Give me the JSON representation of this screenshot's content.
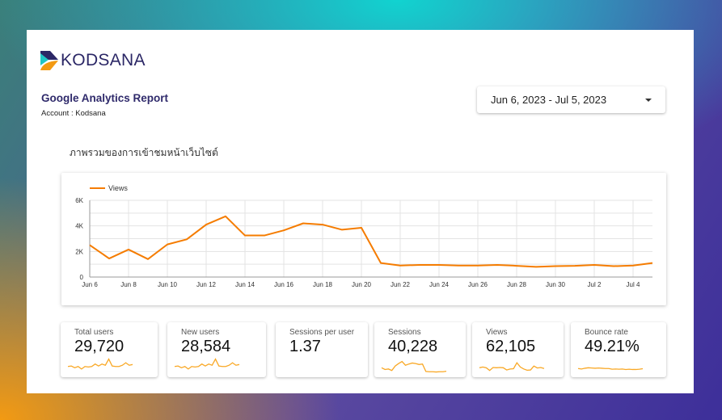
{
  "brand": {
    "name": "KODSANA",
    "colors": {
      "navy": "#2b2766",
      "teal": "#1fc6c6",
      "orange": "#f39a12"
    }
  },
  "header": {
    "title": "Google Analytics Report",
    "account": "Account : Kodsana"
  },
  "date_range": {
    "value": "Jun 6, 2023 - Jul 5, 2023",
    "icon": "caret-down-icon"
  },
  "section_title": "ภาพรวมของการเข้าชมหน้าเว็บไซต์",
  "chart_data": {
    "type": "line",
    "legend": [
      "Views"
    ],
    "legend_position": "top-left",
    "color": "#f57c00",
    "grid": true,
    "ylim": [
      0,
      6000
    ],
    "yticks": [
      "0",
      "2K",
      "4K",
      "6K"
    ],
    "xticks": [
      "Jun 6",
      "Jun 8",
      "Jun 10",
      "Jun 12",
      "Jun 14",
      "Jun 16",
      "Jun 18",
      "Jun 20",
      "Jun 22",
      "Jun 24",
      "Jun 26",
      "Jun 28",
      "Jun 30",
      "Jul 2",
      "Jul 4"
    ],
    "x": [
      "Jun 6",
      "Jun 7",
      "Jun 8",
      "Jun 9",
      "Jun 10",
      "Jun 11",
      "Jun 12",
      "Jun 13",
      "Jun 14",
      "Jun 15",
      "Jun 16",
      "Jun 17",
      "Jun 18",
      "Jun 19",
      "Jun 20",
      "Jun 21",
      "Jun 22",
      "Jun 23",
      "Jun 24",
      "Jun 25",
      "Jun 26",
      "Jun 27",
      "Jun 28",
      "Jun 29",
      "Jun 30",
      "Jul 1",
      "Jul 2",
      "Jul 3",
      "Jul 4",
      "Jul 5"
    ],
    "series": [
      {
        "name": "Views",
        "values": [
          2500,
          1450,
          2150,
          1400,
          2550,
          2950,
          4100,
          4750,
          3250,
          3250,
          3650,
          4200,
          4100,
          3700,
          3850,
          1100,
          900,
          950,
          950,
          900,
          900,
          950,
          880,
          800,
          850,
          880,
          950,
          850,
          900,
          1100
        ]
      }
    ]
  },
  "scorecards": [
    {
      "label": "Total users",
      "value": "29,720",
      "spark": [
        3,
        3.2,
        2.5,
        3,
        2,
        3,
        2.8,
        3,
        4,
        3.2,
        4,
        3.5,
        6,
        3.2,
        3,
        3,
        3.5,
        4.5,
        3.5,
        3.8
      ]
    },
    {
      "label": "New users",
      "value": "28,584",
      "spark": [
        3,
        3.2,
        2.5,
        3,
        2,
        3,
        2.8,
        3,
        4,
        3.2,
        4,
        3.5,
        6,
        3.2,
        3,
        3,
        3.5,
        4.5,
        3.5,
        3.8
      ]
    },
    {
      "label": "Sessions per user",
      "value": "1.37",
      "spark": null
    },
    {
      "label": "Sessions",
      "value": "40,228",
      "spark": [
        2.5,
        1.8,
        2,
        1.4,
        3.2,
        4.2,
        5,
        3.5,
        4,
        4.4,
        4.2,
        3.8,
        4,
        1,
        0.9,
        0.9,
        0.8,
        0.9,
        0.9,
        1.1
      ]
    },
    {
      "label": "Views",
      "value": "62,105",
      "spark": [
        2.5,
        2.8,
        2.5,
        1.4,
        2.6,
        2.5,
        2.6,
        2.5,
        1.6,
        2,
        2.1,
        4.5,
        2.8,
        2,
        1.5,
        1.6,
        3.2,
        2.4,
        2.6,
        2.2
      ]
    },
    {
      "label": "Bounce rate",
      "value": "49.21%",
      "spark": [
        2.2,
        2.0,
        2.3,
        2.5,
        2.4,
        2.3,
        2.4,
        2.3,
        2.2,
        2.2,
        1.9,
        2.0,
        1.9,
        2.0,
        1.8,
        1.9,
        1.8,
        1.8,
        1.9,
        2.1
      ]
    }
  ],
  "spark_color": "#f9a825"
}
